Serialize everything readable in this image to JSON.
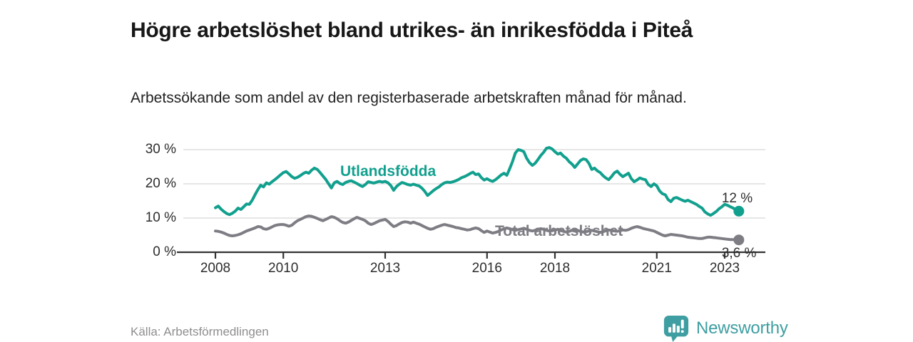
{
  "title": "Högre arbetslöshet bland utrikes- än inrikesfödda i Piteå",
  "subtitle": "Arbetssökande som andel av den registerbaserade arbetskraften månad för månad.",
  "source": "Källa: Arbetsförmedlingen",
  "brand": {
    "name": "Newsworthy",
    "color": "#3f9ea1"
  },
  "colors": {
    "foreign_born_line": "#12a08e",
    "total_line": "#7e7d84",
    "grid": "#dddddd",
    "axis": "#333333",
    "text_dark": "#2d2d2d"
  },
  "chart_data": {
    "type": "line",
    "title": "Högre arbetslöshet bland utrikes- än inrikesfödda i Piteå",
    "subtitle": "Arbetssökande som andel av den registerbaserade arbetskraften månad för månad.",
    "x_unit": "month",
    "x_start": "2008-01",
    "points_per_year": 12,
    "ylim": [
      0,
      32
    ],
    "grid": "horizontal",
    "legend": "inline-labels",
    "y_ticks": [
      {
        "value": 0,
        "label": "0 %"
      },
      {
        "value": 10,
        "label": "10 %"
      },
      {
        "value": 20,
        "label": "20 %"
      },
      {
        "value": 30,
        "label": "30 %"
      }
    ],
    "x_ticks": [
      {
        "year": 2008,
        "label": "2008"
      },
      {
        "year": 2010,
        "label": "2010"
      },
      {
        "year": 2013,
        "label": "2013"
      },
      {
        "year": 2016,
        "label": "2016"
      },
      {
        "year": 2018,
        "label": "2018"
      },
      {
        "year": 2021,
        "label": "2021"
      },
      {
        "year": 2023,
        "label": "2023"
      }
    ],
    "series": [
      {
        "name": "Utlandsfödda",
        "color": "#12a08e",
        "end_label": "12 %",
        "end_value": 12.0,
        "values": [
          13.0,
          13.5,
          12.6,
          11.9,
          11.3,
          11.0,
          11.4,
          12.0,
          12.9,
          12.5,
          13.3,
          14.1,
          14.0,
          15.2,
          16.8,
          18.3,
          19.6,
          19.1,
          20.3,
          19.9,
          20.6,
          21.2,
          21.9,
          22.6,
          23.3,
          23.6,
          22.9,
          22.1,
          21.6,
          21.9,
          22.4,
          23.0,
          23.4,
          23.1,
          24.0,
          24.6,
          24.2,
          23.3,
          22.3,
          21.3,
          20.0,
          18.8,
          20.3,
          20.7,
          20.1,
          19.8,
          20.4,
          20.7,
          20.9,
          20.5,
          20.1,
          19.6,
          19.2,
          19.8,
          20.6,
          20.4,
          20.2,
          20.5,
          20.7,
          20.5,
          20.7,
          20.3,
          19.5,
          18.1,
          19.2,
          19.9,
          20.4,
          20.1,
          19.8,
          19.6,
          19.9,
          19.6,
          19.4,
          18.7,
          17.8,
          16.6,
          17.3,
          18.0,
          18.6,
          19.1,
          19.8,
          20.3,
          20.5,
          20.4,
          20.6,
          20.9,
          21.3,
          21.8,
          22.1,
          22.5,
          23.0,
          23.4,
          22.7,
          22.9,
          21.8,
          21.1,
          21.5,
          21.0,
          20.7,
          21.2,
          21.9,
          22.6,
          23.1,
          22.5,
          24.4,
          26.5,
          29.0,
          30.0,
          29.8,
          29.4,
          27.5,
          26.2,
          25.4,
          26.0,
          27.1,
          28.3,
          29.2,
          30.4,
          30.6,
          30.2,
          29.4,
          28.7,
          29.0,
          28.1,
          27.5,
          26.5,
          25.8,
          24.8,
          25.8,
          26.8,
          27.3,
          27.1,
          26.0,
          24.2,
          24.6,
          23.8,
          23.3,
          22.4,
          21.7,
          21.2,
          22.1,
          23.2,
          23.7,
          22.8,
          22.1,
          22.6,
          23.1,
          21.5,
          20.6,
          21.1,
          21.7,
          21.4,
          21.2,
          19.8,
          19.2,
          20.0,
          19.4,
          17.9,
          17.1,
          16.8,
          15.4,
          14.8,
          15.8,
          16.0,
          15.6,
          15.2,
          14.9,
          15.2,
          14.8,
          14.4,
          14.0,
          13.4,
          12.9,
          11.8,
          11.2,
          10.8,
          11.3,
          11.9,
          12.7,
          13.3,
          14.0,
          13.7,
          13.3,
          12.9,
          12.4,
          12.0
        ]
      },
      {
        "name": "Total arbetslöshet",
        "color": "#7e7d84",
        "end_label": "3,6 %",
        "end_value": 3.6,
        "values": [
          6.2,
          6.1,
          5.9,
          5.6,
          5.2,
          4.9,
          4.8,
          4.9,
          5.1,
          5.4,
          5.8,
          6.2,
          6.5,
          6.8,
          7.1,
          7.5,
          7.4,
          6.9,
          6.7,
          7.0,
          7.4,
          7.8,
          8.0,
          8.1,
          8.1,
          7.9,
          7.6,
          7.9,
          8.6,
          9.2,
          9.6,
          10.0,
          10.4,
          10.6,
          10.5,
          10.2,
          9.9,
          9.5,
          9.2,
          9.6,
          10.0,
          10.4,
          10.2,
          9.8,
          9.2,
          8.7,
          8.5,
          8.8,
          9.3,
          9.8,
          10.2,
          9.9,
          9.6,
          9.2,
          8.5,
          8.1,
          8.4,
          8.8,
          9.2,
          9.4,
          9.6,
          9.0,
          8.2,
          7.5,
          7.8,
          8.3,
          8.7,
          8.9,
          8.8,
          8.5,
          8.8,
          8.5,
          8.2,
          7.8,
          7.4,
          7.0,
          6.7,
          6.9,
          7.3,
          7.6,
          7.9,
          8.1,
          7.9,
          7.7,
          7.5,
          7.2,
          7.1,
          6.9,
          6.7,
          6.5,
          6.6,
          6.9,
          7.1,
          6.9,
          6.3,
          5.8,
          6.2,
          5.9,
          5.6,
          5.8,
          6.1,
          6.5,
          6.9,
          7.1,
          6.9,
          6.6,
          6.4,
          6.6,
          6.8,
          7.0,
          6.7,
          6.4,
          6.2,
          6.4,
          6.7,
          6.9,
          6.7,
          6.4,
          6.2,
          6.3,
          6.5,
          6.7,
          6.4,
          6.1,
          5.9,
          6.1,
          6.4,
          6.6,
          6.4,
          6.1,
          5.9,
          6.0,
          6.2,
          6.4,
          6.2,
          6.0,
          5.8,
          6.0,
          6.3,
          6.5,
          6.4,
          6.2,
          6.1,
          6.3,
          6.5,
          6.4,
          6.6,
          7.0,
          7.3,
          7.5,
          7.3,
          7.0,
          6.8,
          6.6,
          6.4,
          6.2,
          5.8,
          5.4,
          5.0,
          4.8,
          5.0,
          5.2,
          5.1,
          5.0,
          4.9,
          4.8,
          4.6,
          4.4,
          4.3,
          4.2,
          4.1,
          4.0,
          4.0,
          4.2,
          4.4,
          4.4,
          4.3,
          4.2,
          4.1,
          4.0,
          3.9,
          3.8,
          3.7,
          3.7,
          3.6,
          3.6
        ]
      }
    ]
  }
}
